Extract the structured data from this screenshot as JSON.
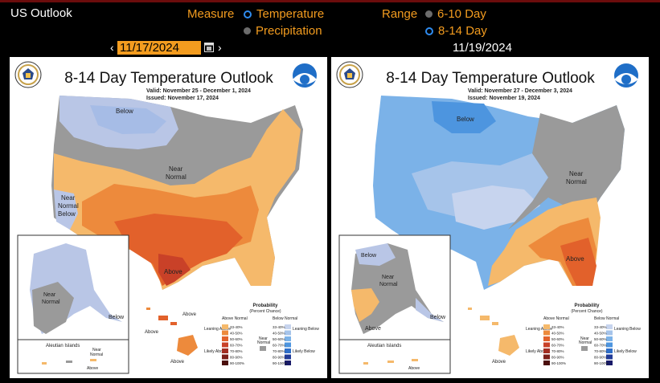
{
  "app": {
    "title": "US Outlook"
  },
  "controls": {
    "measure_label": "Measure",
    "measure_options": [
      {
        "label": "Temperature",
        "selected": true
      },
      {
        "label": "Precipitation",
        "selected": false
      }
    ],
    "range_label": "Range",
    "range_options": [
      {
        "label": "6-10 Day",
        "selected": false
      },
      {
        "label": "8-14 Day",
        "selected": true
      }
    ],
    "date_left": "11/17/2024",
    "date_right": "11/19/2024",
    "prev_arrow": "‹",
    "next_arrow": "›"
  },
  "maps": [
    {
      "title": "8-14 Day Temperature Outlook",
      "valid": "Valid:  November 25 - December 1, 2024",
      "issued": "Issued:  November 17, 2024",
      "labels": {
        "below": "Below",
        "near_normal_1": "Near",
        "near_normal_2": "Normal",
        "near_below_1": "Near",
        "near_below_2": "Normal",
        "near_below_3": "Below",
        "above": "Above",
        "ak_below": "Below",
        "ak_near_1": "Near",
        "ak_near_2": "Normal",
        "hi_above": "Above",
        "aleutian": "Aleutian Islands",
        "aleutian_near_1": "Near",
        "aleutian_near_2": "Normal",
        "aleutian_above": "Above"
      }
    },
    {
      "title": "8-14 Day Temperature Outlook",
      "valid": "Valid:  November 27 - December 3, 2024",
      "issued": "Issued:  November 19, 2024",
      "labels": {
        "below": "Below",
        "near_normal_1": "Near",
        "near_normal_2": "Normal",
        "above": "Above",
        "ak_below": "Below",
        "ak_near_1": "Near",
        "ak_near_2": "Normal",
        "ak_above": "Above",
        "hi_above": "Above",
        "aleutian": "Aleutian Islands",
        "aleutian_above": "Above"
      }
    }
  ],
  "legend": {
    "title": "Probability",
    "subtitle": "(Percent Chance)",
    "above_normal": "Above Normal",
    "below_normal": "Below Normal",
    "near_normal_1": "Near",
    "near_normal_2": "Normal",
    "leaning_above": "Leaning Above",
    "likely_above": "Likely Above",
    "leaning_below": "Leaning Below",
    "likely_below": "Likely Below",
    "above_pcts": [
      "33-40%",
      "40-50%",
      "50-60%",
      "60-70%",
      "70-80%",
      "80-90%",
      "90-100%"
    ],
    "below_pcts": [
      "33-40%",
      "40-50%",
      "50-60%",
      "60-70%",
      "70-80%",
      "80-90%",
      "90-100%"
    ],
    "above_colors": [
      "#f5b96b",
      "#ed8a3c",
      "#e2612b",
      "#c94128",
      "#a32e22",
      "#7c1f19",
      "#4b0f0d"
    ],
    "below_colors": [
      "#c7d4ee",
      "#a6c4ea",
      "#7bb2e8",
      "#4d95df",
      "#2f6fc9",
      "#223c98",
      "#181a68"
    ]
  },
  "colors": {
    "accent": "#f39c1f",
    "radio_selected": "#2f8cf0",
    "gray_near": "#9a9a9a"
  }
}
